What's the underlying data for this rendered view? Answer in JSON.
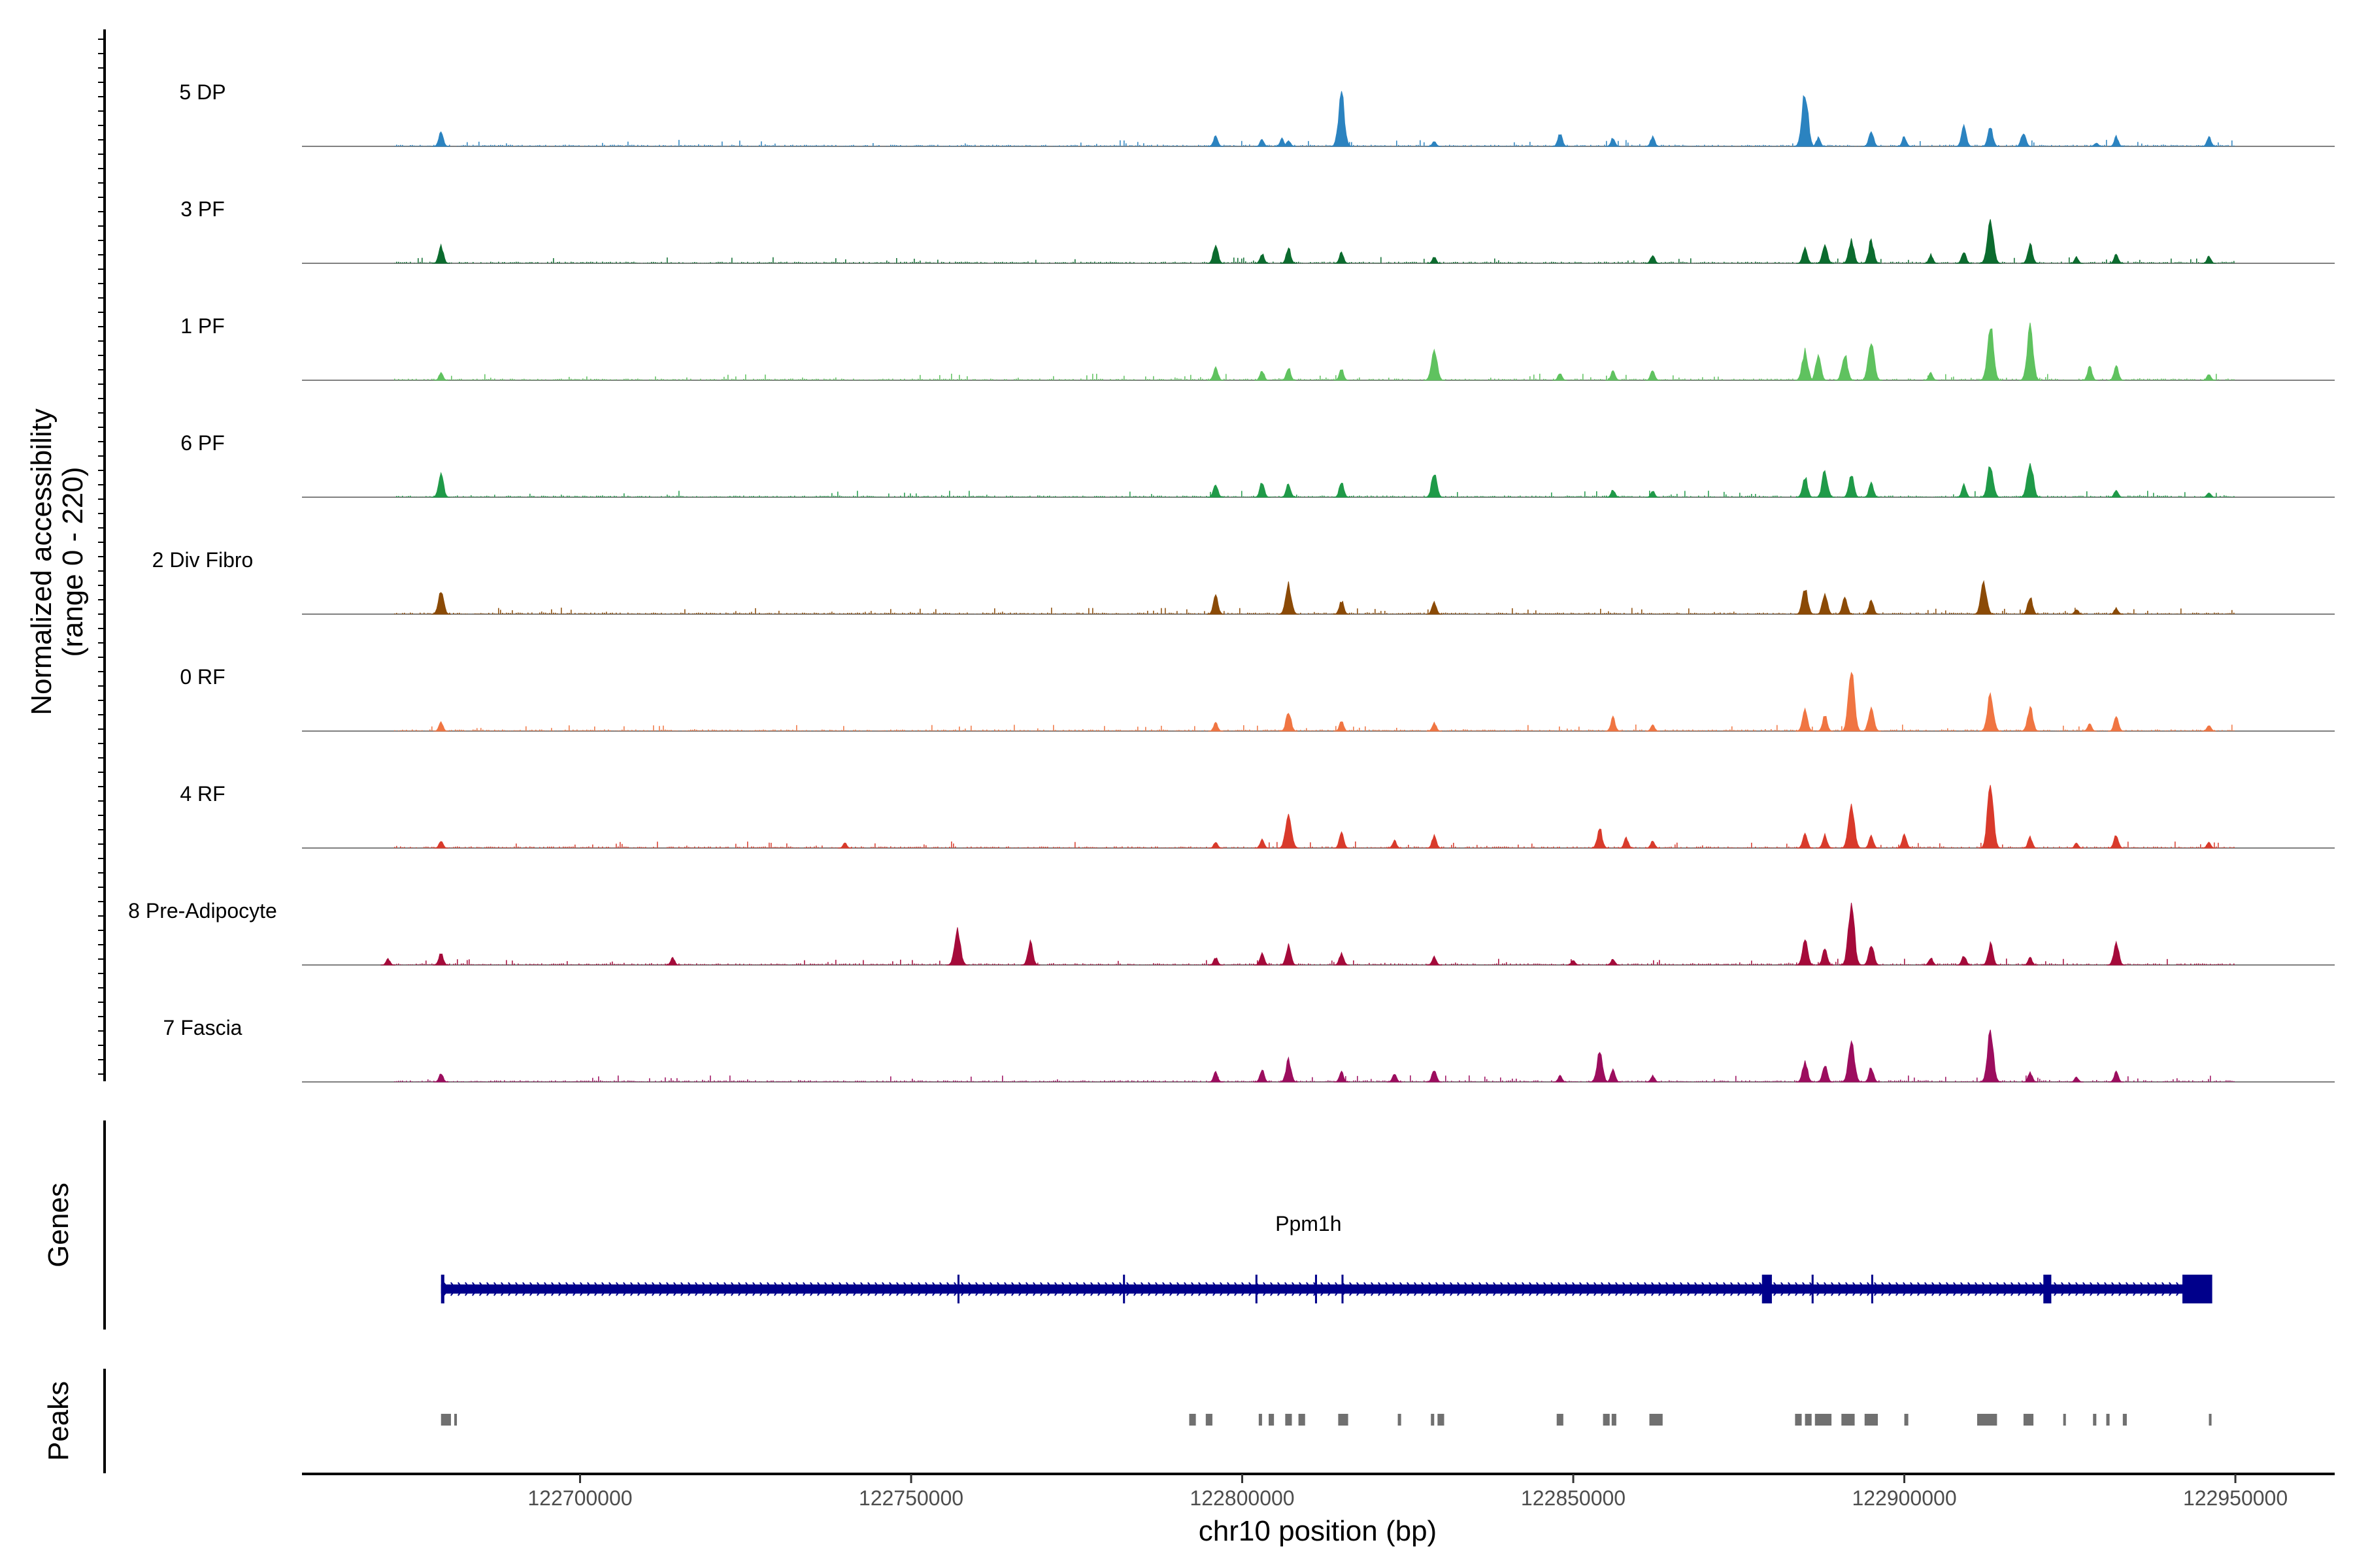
{
  "chart_data": {
    "type": "area",
    "title": "",
    "chromosome": "chr10",
    "xlabel": "chr10 position (bp)",
    "ylabel": "Normalized accessibility",
    "ylabel_range": "(range 0 - 220)",
    "ylim": [
      0,
      220
    ],
    "xlim": [
      122658000,
      122965000
    ],
    "x_ticks": [
      122700000,
      122750000,
      122800000,
      122850000,
      122900000,
      122950000
    ],
    "x_tick_labels": [
      "122700000",
      "122750000",
      "122800000",
      "122850000",
      "122900000",
      "122950000"
    ],
    "baseline_color": "#808080",
    "tracks": [
      {
        "name": "5 DP",
        "color": "#2b83c0",
        "peaks": [
          [
            122679000,
            60
          ],
          [
            122796000,
            45
          ],
          [
            122803000,
            28
          ],
          [
            122806000,
            32
          ],
          [
            122807000,
            25
          ],
          [
            122815000,
            210
          ],
          [
            122829000,
            20
          ],
          [
            122848000,
            55
          ],
          [
            122856000,
            35
          ],
          [
            122862000,
            40
          ],
          [
            122885000,
            230
          ],
          [
            122887000,
            35
          ],
          [
            122895000,
            65
          ],
          [
            122900000,
            40
          ],
          [
            122909000,
            80
          ],
          [
            122913000,
            80
          ],
          [
            122918000,
            60
          ],
          [
            122929000,
            15
          ],
          [
            122932000,
            40
          ],
          [
            122946000,
            40
          ]
        ]
      },
      {
        "name": "3 PF",
        "color": "#0b6b2e",
        "peaks": [
          [
            122679000,
            70
          ],
          [
            122796000,
            75
          ],
          [
            122803000,
            40
          ],
          [
            122807000,
            60
          ],
          [
            122815000,
            45
          ],
          [
            122829000,
            25
          ],
          [
            122862000,
            35
          ],
          [
            122885000,
            65
          ],
          [
            122888000,
            80
          ],
          [
            122892000,
            95
          ],
          [
            122895000,
            95
          ],
          [
            122904000,
            35
          ],
          [
            122909000,
            50
          ],
          [
            122913000,
            190
          ],
          [
            122919000,
            80
          ],
          [
            122926000,
            25
          ],
          [
            122932000,
            40
          ],
          [
            122946000,
            30
          ]
        ]
      },
      {
        "name": "1 PF",
        "color": "#5fc25f",
        "peaks": [
          [
            122679000,
            30
          ],
          [
            122796000,
            55
          ],
          [
            122803000,
            40
          ],
          [
            122807000,
            50
          ],
          [
            122815000,
            45
          ],
          [
            122829000,
            130
          ],
          [
            122848000,
            30
          ],
          [
            122856000,
            40
          ],
          [
            122862000,
            40
          ],
          [
            122885000,
            120
          ],
          [
            122887000,
            100
          ],
          [
            122891000,
            110
          ],
          [
            122895000,
            160
          ],
          [
            122904000,
            30
          ],
          [
            122913000,
            230
          ],
          [
            122919000,
            210
          ],
          [
            122928000,
            55
          ],
          [
            122932000,
            60
          ],
          [
            122946000,
            25
          ]
        ]
      },
      {
        "name": "6 PF",
        "color": "#1f9a48",
        "peaks": [
          [
            122679000,
            90
          ],
          [
            122796000,
            55
          ],
          [
            122803000,
            60
          ],
          [
            122807000,
            55
          ],
          [
            122815000,
            60
          ],
          [
            122829000,
            100
          ],
          [
            122856000,
            30
          ],
          [
            122862000,
            25
          ],
          [
            122885000,
            85
          ],
          [
            122888000,
            110
          ],
          [
            122892000,
            90
          ],
          [
            122895000,
            60
          ],
          [
            122909000,
            50
          ],
          [
            122913000,
            130
          ],
          [
            122919000,
            150
          ],
          [
            122932000,
            30
          ],
          [
            122946000,
            20
          ]
        ]
      },
      {
        "name": "2 Div Fibro",
        "color": "#8b4a06",
        "peaks": [
          [
            122679000,
            100
          ],
          [
            122796000,
            75
          ],
          [
            122807000,
            120
          ],
          [
            122815000,
            55
          ],
          [
            122829000,
            50
          ],
          [
            122885000,
            110
          ],
          [
            122888000,
            85
          ],
          [
            122891000,
            75
          ],
          [
            122895000,
            60
          ],
          [
            122912000,
            130
          ],
          [
            122919000,
            70
          ],
          [
            122926000,
            20
          ],
          [
            122932000,
            25
          ]
        ]
      },
      {
        "name": "0 RF",
        "color": "#f07542",
        "peaks": [
          [
            122679000,
            35
          ],
          [
            122796000,
            35
          ],
          [
            122807000,
            80
          ],
          [
            122815000,
            40
          ],
          [
            122829000,
            35
          ],
          [
            122856000,
            55
          ],
          [
            122862000,
            25
          ],
          [
            122885000,
            90
          ],
          [
            122888000,
            65
          ],
          [
            122892000,
            240
          ],
          [
            122895000,
            100
          ],
          [
            122913000,
            150
          ],
          [
            122919000,
            100
          ],
          [
            122928000,
            30
          ],
          [
            122932000,
            60
          ],
          [
            122946000,
            25
          ]
        ]
      },
      {
        "name": "4 RF",
        "color": "#d93a2b",
        "peaks": [
          [
            122679000,
            30
          ],
          [
            122740000,
            20
          ],
          [
            122796000,
            25
          ],
          [
            122803000,
            35
          ],
          [
            122807000,
            140
          ],
          [
            122815000,
            60
          ],
          [
            122823000,
            30
          ],
          [
            122829000,
            50
          ],
          [
            122854000,
            80
          ],
          [
            122858000,
            40
          ],
          [
            122862000,
            30
          ],
          [
            122885000,
            60
          ],
          [
            122888000,
            55
          ],
          [
            122892000,
            180
          ],
          [
            122895000,
            50
          ],
          [
            122900000,
            55
          ],
          [
            122913000,
            250
          ],
          [
            122919000,
            45
          ],
          [
            122926000,
            20
          ],
          [
            122932000,
            55
          ],
          [
            122946000,
            25
          ]
        ]
      },
      {
        "name": "8 Pre-Adipocyte",
        "color": "#a50a3a",
        "peaks": [
          [
            122671000,
            25
          ],
          [
            122679000,
            50
          ],
          [
            122714000,
            30
          ],
          [
            122757000,
            140
          ],
          [
            122768000,
            90
          ],
          [
            122796000,
            30
          ],
          [
            122803000,
            50
          ],
          [
            122807000,
            80
          ],
          [
            122815000,
            50
          ],
          [
            122829000,
            35
          ],
          [
            122850000,
            20
          ],
          [
            122856000,
            25
          ],
          [
            122885000,
            100
          ],
          [
            122888000,
            70
          ],
          [
            122892000,
            260
          ],
          [
            122895000,
            90
          ],
          [
            122904000,
            30
          ],
          [
            122909000,
            40
          ],
          [
            122913000,
            85
          ],
          [
            122919000,
            30
          ],
          [
            122932000,
            90
          ]
        ]
      },
      {
        "name": "7 Fascia",
        "color": "#9c0d5e",
        "peaks": [
          [
            122679000,
            35
          ],
          [
            122796000,
            40
          ],
          [
            122803000,
            50
          ],
          [
            122807000,
            90
          ],
          [
            122815000,
            40
          ],
          [
            122823000,
            35
          ],
          [
            122829000,
            50
          ],
          [
            122848000,
            25
          ],
          [
            122854000,
            120
          ],
          [
            122856000,
            50
          ],
          [
            122862000,
            25
          ],
          [
            122885000,
            85
          ],
          [
            122888000,
            70
          ],
          [
            122892000,
            160
          ],
          [
            122895000,
            60
          ],
          [
            122913000,
            200
          ],
          [
            122919000,
            40
          ],
          [
            122926000,
            20
          ],
          [
            122932000,
            40
          ]
        ]
      }
    ],
    "genes_track": {
      "title": "Genes",
      "gene_name": "Ppm1h",
      "color": "#00008b",
      "start": 122679000,
      "end": 122946000,
      "exons": [
        [
          122679000,
          122679500
        ],
        [
          122757000,
          122757300
        ],
        [
          122782000,
          122782300
        ],
        [
          122802000,
          122802300
        ],
        [
          122811000,
          122811300
        ],
        [
          122815000,
          122815300
        ],
        [
          122878500,
          122880000
        ],
        [
          122886000,
          122886300
        ],
        [
          122895000,
          122895300
        ],
        [
          122921000,
          122922200
        ],
        [
          122942000,
          122946500
        ]
      ]
    },
    "peaks_track": {
      "title": "Peaks",
      "color": "#707070",
      "regions": [
        [
          122679000,
          122680500
        ],
        [
          122681000,
          122681400
        ],
        [
          122792000,
          122793000
        ],
        [
          122794500,
          122795500
        ],
        [
          122802500,
          122803000
        ],
        [
          122804000,
          122804800
        ],
        [
          122806500,
          122807500
        ],
        [
          122808500,
          122809500
        ],
        [
          122814500,
          122816000
        ],
        [
          122823500,
          122824000
        ],
        [
          122828500,
          122829000
        ],
        [
          122829500,
          122830500
        ],
        [
          122847500,
          122848500
        ],
        [
          122854500,
          122855500
        ],
        [
          122855800,
          122856500
        ],
        [
          122861500,
          122863500
        ],
        [
          122883500,
          122884500
        ],
        [
          122885000,
          122886000
        ],
        [
          122886500,
          122889000
        ],
        [
          122890500,
          122892500
        ],
        [
          122894000,
          122896000
        ],
        [
          122900000,
          122900600
        ],
        [
          122911000,
          122914000
        ],
        [
          122918000,
          122919500
        ],
        [
          122924000,
          122924400
        ],
        [
          122928500,
          122929000
        ],
        [
          122930500,
          122931000
        ],
        [
          122933000,
          122933600
        ],
        [
          122946000,
          122946400
        ]
      ]
    }
  }
}
